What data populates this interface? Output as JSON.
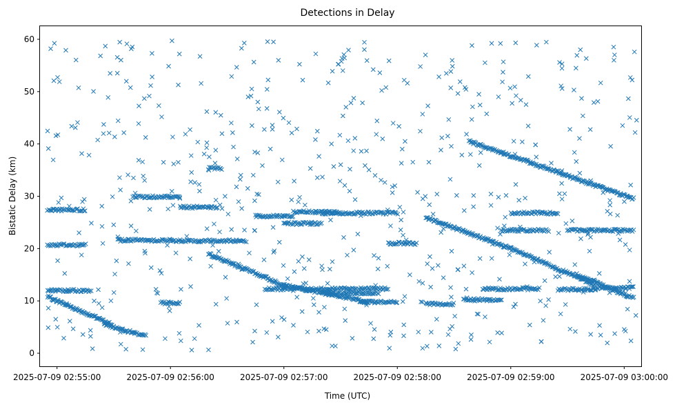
{
  "chart_data": {
    "type": "scatter",
    "title": "Detections in Delay",
    "xlabel": "Time (UTC)",
    "ylabel": "Bistatic Delay (km)",
    "marker": "x",
    "color": "#1f77b4",
    "xlim": [
      "2025-07-09 02:54:51",
      "2025-07-09 03:00:09"
    ],
    "ylim": [
      -2.5,
      62.5
    ],
    "x_ticks": [
      "2025-07-09 02:55:00",
      "2025-07-09 02:56:00",
      "2025-07-09 02:57:00",
      "2025-07-09 02:58:00",
      "2025-07-09 02:59:00",
      "2025-07-09 03:00:00"
    ],
    "y_ticks": [
      "0",
      "10",
      "20",
      "30",
      "40",
      "50",
      "60"
    ],
    "grid": false,
    "time_range": [
      "2025-07-09 02:54:55",
      "2025-07-09 03:00:07"
    ],
    "tracks": [
      {
        "start": [
          "2025-07-09 02:54:55",
          10.8
        ],
        "end": [
          "2025-07-09 02:55:29",
          5.5
        ]
      },
      {
        "start": [
          "2025-07-09 02:55:25",
          5.5
        ],
        "end": [
          "2025-07-09 02:55:47",
          3.3
        ]
      },
      {
        "start": [
          "2025-07-09 02:56:20",
          19.0
        ],
        "end": [
          "2025-07-09 02:57:00",
          13.0
        ]
      },
      {
        "start": [
          "2025-07-09 02:57:00",
          13.0
        ],
        "end": [
          "2025-07-09 02:57:45",
          9.8
        ]
      },
      {
        "start": [
          "2025-07-09 02:58:15",
          26.0
        ],
        "end": [
          "2025-07-09 02:59:00",
          20.0
        ]
      },
      {
        "start": [
          "2025-07-09 02:59:00",
          20.0
        ],
        "end": [
          "2025-07-09 02:59:45",
          13.0
        ]
      },
      {
        "start": [
          "2025-07-09 02:58:38",
          40.5
        ],
        "end": [
          "2025-07-09 03:00:05",
          29.5
        ]
      },
      {
        "start": [
          "2025-07-09 02:59:35",
          15.0
        ],
        "end": [
          "2025-07-09 03:00:05",
          10.5
        ]
      }
    ],
    "bands": [
      {
        "y": 27.4,
        "from": "2025-07-09 02:54:55",
        "to": "2025-07-09 02:55:15"
      },
      {
        "y": 20.7,
        "from": "2025-07-09 02:54:55",
        "to": "2025-07-09 02:55:15"
      },
      {
        "y": 12.0,
        "from": "2025-07-09 02:54:55",
        "to": "2025-07-09 02:55:18"
      },
      {
        "y": 21.6,
        "from": "2025-07-09 02:55:32",
        "to": "2025-07-09 02:56:00"
      },
      {
        "y": 29.9,
        "from": "2025-07-09 02:55:40",
        "to": "2025-07-09 02:56:05"
      },
      {
        "y": 21.5,
        "from": "2025-07-09 02:56:00",
        "to": "2025-07-09 02:56:40"
      },
      {
        "y": 27.9,
        "from": "2025-07-09 02:56:05",
        "to": "2025-07-09 02:56:25"
      },
      {
        "y": 35.3,
        "from": "2025-07-09 02:56:20",
        "to": "2025-07-09 02:56:27"
      },
      {
        "y": 9.6,
        "from": "2025-07-09 02:55:55",
        "to": "2025-07-09 02:56:05"
      },
      {
        "y": 26.2,
        "from": "2025-07-09 02:56:45",
        "to": "2025-07-09 02:57:05"
      },
      {
        "y": 24.8,
        "from": "2025-07-09 02:57:00",
        "to": "2025-07-09 02:57:20"
      },
      {
        "y": 27.0,
        "from": "2025-07-09 02:57:05",
        "to": "2025-07-09 02:57:28"
      },
      {
        "y": 12.3,
        "from": "2025-07-09 02:56:50",
        "to": "2025-07-09 02:57:55"
      },
      {
        "y": 11.5,
        "from": "2025-07-09 02:57:20",
        "to": "2025-07-09 02:57:50"
      },
      {
        "y": 26.8,
        "from": "2025-07-09 02:57:20",
        "to": "2025-07-09 02:58:00"
      },
      {
        "y": 9.8,
        "from": "2025-07-09 02:57:40",
        "to": "2025-07-09 02:58:00"
      },
      {
        "y": 21.0,
        "from": "2025-07-09 02:57:55",
        "to": "2025-07-09 02:58:10"
      },
      {
        "y": 9.4,
        "from": "2025-07-09 02:58:15",
        "to": "2025-07-09 02:58:30"
      },
      {
        "y": 10.2,
        "from": "2025-07-09 02:58:35",
        "to": "2025-07-09 02:58:55"
      },
      {
        "y": 12.3,
        "from": "2025-07-09 02:58:45",
        "to": "2025-07-09 02:59:15"
      },
      {
        "y": 23.5,
        "from": "2025-07-09 02:58:55",
        "to": "2025-07-09 02:59:20"
      },
      {
        "y": 26.8,
        "from": "2025-07-09 02:59:00",
        "to": "2025-07-09 02:59:25"
      },
      {
        "y": 12.2,
        "from": "2025-07-09 02:59:25",
        "to": "2025-07-09 02:59:45"
      },
      {
        "y": 23.5,
        "from": "2025-07-09 02:59:30",
        "to": "2025-07-09 03:00:05"
      },
      {
        "y": 12.5,
        "from": "2025-07-09 02:59:45",
        "to": "2025-07-09 03:00:05"
      }
    ],
    "scatter_seed": 7,
    "scatter_count": 620
  }
}
